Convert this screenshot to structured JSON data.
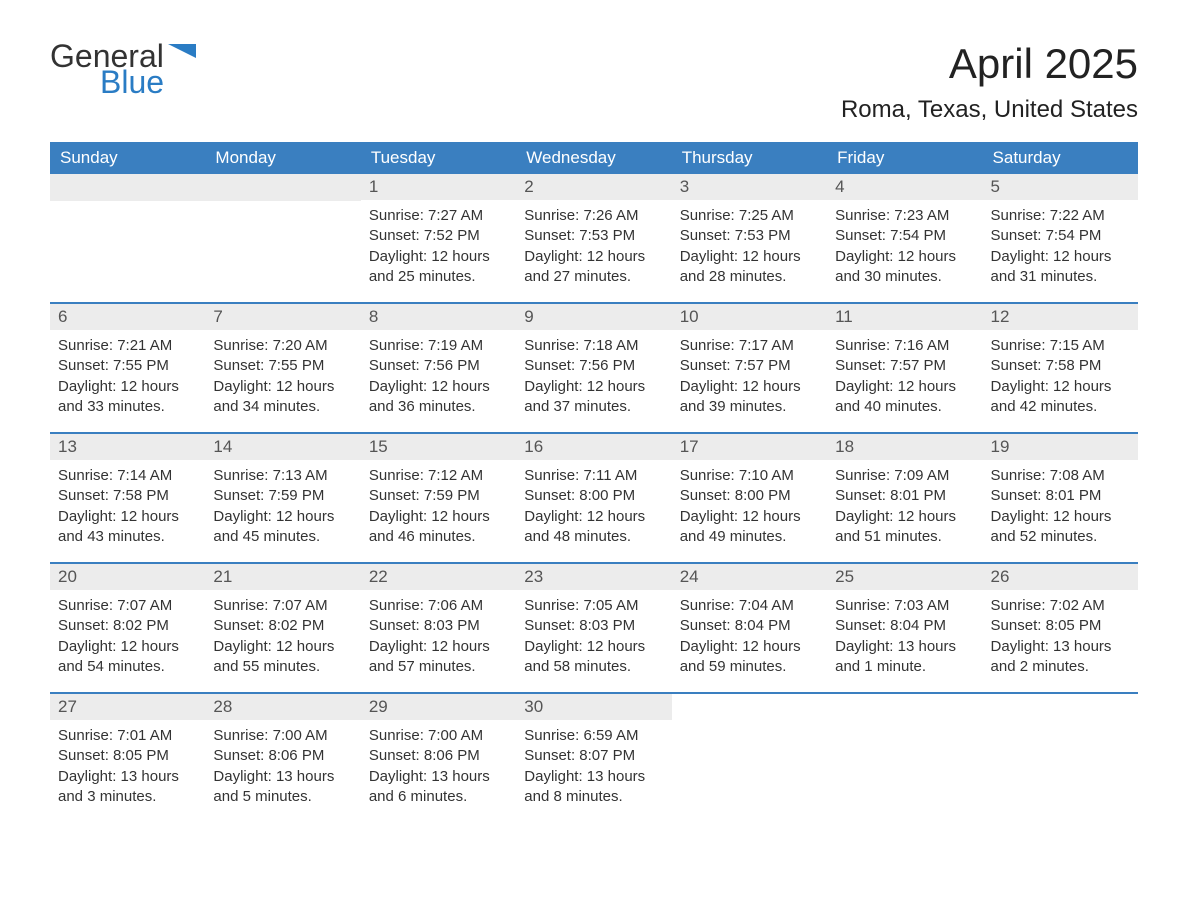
{
  "logo": {
    "word1": "General",
    "word2": "Blue",
    "flag_color": "#2a7cc4"
  },
  "header": {
    "month_title": "April 2025",
    "location": "Roma, Texas, United States"
  },
  "colors": {
    "header_bg": "#3a7fc0",
    "header_text": "#ffffff",
    "daynum_bg": "#ececec",
    "daynum_text": "#555555",
    "body_text": "#333333",
    "week_border": "#3a7fc0",
    "page_bg": "#ffffff",
    "logo_blue": "#2a7cc4"
  },
  "typography": {
    "month_title_fontsize": 42,
    "location_fontsize": 24,
    "dow_fontsize": 17,
    "daynum_fontsize": 17,
    "body_fontsize": 15
  },
  "days_of_week": [
    "Sunday",
    "Monday",
    "Tuesday",
    "Wednesday",
    "Thursday",
    "Friday",
    "Saturday"
  ],
  "weeks": [
    [
      null,
      null,
      {
        "n": "1",
        "sunrise": "Sunrise: 7:27 AM",
        "sunset": "Sunset: 7:52 PM",
        "daylight": "Daylight: 12 hours and 25 minutes."
      },
      {
        "n": "2",
        "sunrise": "Sunrise: 7:26 AM",
        "sunset": "Sunset: 7:53 PM",
        "daylight": "Daylight: 12 hours and 27 minutes."
      },
      {
        "n": "3",
        "sunrise": "Sunrise: 7:25 AM",
        "sunset": "Sunset: 7:53 PM",
        "daylight": "Daylight: 12 hours and 28 minutes."
      },
      {
        "n": "4",
        "sunrise": "Sunrise: 7:23 AM",
        "sunset": "Sunset: 7:54 PM",
        "daylight": "Daylight: 12 hours and 30 minutes."
      },
      {
        "n": "5",
        "sunrise": "Sunrise: 7:22 AM",
        "sunset": "Sunset: 7:54 PM",
        "daylight": "Daylight: 12 hours and 31 minutes."
      }
    ],
    [
      {
        "n": "6",
        "sunrise": "Sunrise: 7:21 AM",
        "sunset": "Sunset: 7:55 PM",
        "daylight": "Daylight: 12 hours and 33 minutes."
      },
      {
        "n": "7",
        "sunrise": "Sunrise: 7:20 AM",
        "sunset": "Sunset: 7:55 PM",
        "daylight": "Daylight: 12 hours and 34 minutes."
      },
      {
        "n": "8",
        "sunrise": "Sunrise: 7:19 AM",
        "sunset": "Sunset: 7:56 PM",
        "daylight": "Daylight: 12 hours and 36 minutes."
      },
      {
        "n": "9",
        "sunrise": "Sunrise: 7:18 AM",
        "sunset": "Sunset: 7:56 PM",
        "daylight": "Daylight: 12 hours and 37 minutes."
      },
      {
        "n": "10",
        "sunrise": "Sunrise: 7:17 AM",
        "sunset": "Sunset: 7:57 PM",
        "daylight": "Daylight: 12 hours and 39 minutes."
      },
      {
        "n": "11",
        "sunrise": "Sunrise: 7:16 AM",
        "sunset": "Sunset: 7:57 PM",
        "daylight": "Daylight: 12 hours and 40 minutes."
      },
      {
        "n": "12",
        "sunrise": "Sunrise: 7:15 AM",
        "sunset": "Sunset: 7:58 PM",
        "daylight": "Daylight: 12 hours and 42 minutes."
      }
    ],
    [
      {
        "n": "13",
        "sunrise": "Sunrise: 7:14 AM",
        "sunset": "Sunset: 7:58 PM",
        "daylight": "Daylight: 12 hours and 43 minutes."
      },
      {
        "n": "14",
        "sunrise": "Sunrise: 7:13 AM",
        "sunset": "Sunset: 7:59 PM",
        "daylight": "Daylight: 12 hours and 45 minutes."
      },
      {
        "n": "15",
        "sunrise": "Sunrise: 7:12 AM",
        "sunset": "Sunset: 7:59 PM",
        "daylight": "Daylight: 12 hours and 46 minutes."
      },
      {
        "n": "16",
        "sunrise": "Sunrise: 7:11 AM",
        "sunset": "Sunset: 8:00 PM",
        "daylight": "Daylight: 12 hours and 48 minutes."
      },
      {
        "n": "17",
        "sunrise": "Sunrise: 7:10 AM",
        "sunset": "Sunset: 8:00 PM",
        "daylight": "Daylight: 12 hours and 49 minutes."
      },
      {
        "n": "18",
        "sunrise": "Sunrise: 7:09 AM",
        "sunset": "Sunset: 8:01 PM",
        "daylight": "Daylight: 12 hours and 51 minutes."
      },
      {
        "n": "19",
        "sunrise": "Sunrise: 7:08 AM",
        "sunset": "Sunset: 8:01 PM",
        "daylight": "Daylight: 12 hours and 52 minutes."
      }
    ],
    [
      {
        "n": "20",
        "sunrise": "Sunrise: 7:07 AM",
        "sunset": "Sunset: 8:02 PM",
        "daylight": "Daylight: 12 hours and 54 minutes."
      },
      {
        "n": "21",
        "sunrise": "Sunrise: 7:07 AM",
        "sunset": "Sunset: 8:02 PM",
        "daylight": "Daylight: 12 hours and 55 minutes."
      },
      {
        "n": "22",
        "sunrise": "Sunrise: 7:06 AM",
        "sunset": "Sunset: 8:03 PM",
        "daylight": "Daylight: 12 hours and 57 minutes."
      },
      {
        "n": "23",
        "sunrise": "Sunrise: 7:05 AM",
        "sunset": "Sunset: 8:03 PM",
        "daylight": "Daylight: 12 hours and 58 minutes."
      },
      {
        "n": "24",
        "sunrise": "Sunrise: 7:04 AM",
        "sunset": "Sunset: 8:04 PM",
        "daylight": "Daylight: 12 hours and 59 minutes."
      },
      {
        "n": "25",
        "sunrise": "Sunrise: 7:03 AM",
        "sunset": "Sunset: 8:04 PM",
        "daylight": "Daylight: 13 hours and 1 minute."
      },
      {
        "n": "26",
        "sunrise": "Sunrise: 7:02 AM",
        "sunset": "Sunset: 8:05 PM",
        "daylight": "Daylight: 13 hours and 2 minutes."
      }
    ],
    [
      {
        "n": "27",
        "sunrise": "Sunrise: 7:01 AM",
        "sunset": "Sunset: 8:05 PM",
        "daylight": "Daylight: 13 hours and 3 minutes."
      },
      {
        "n": "28",
        "sunrise": "Sunrise: 7:00 AM",
        "sunset": "Sunset: 8:06 PM",
        "daylight": "Daylight: 13 hours and 5 minutes."
      },
      {
        "n": "29",
        "sunrise": "Sunrise: 7:00 AM",
        "sunset": "Sunset: 8:06 PM",
        "daylight": "Daylight: 13 hours and 6 minutes."
      },
      {
        "n": "30",
        "sunrise": "Sunrise: 6:59 AM",
        "sunset": "Sunset: 8:07 PM",
        "daylight": "Daylight: 13 hours and 8 minutes."
      },
      null,
      null,
      null
    ]
  ]
}
